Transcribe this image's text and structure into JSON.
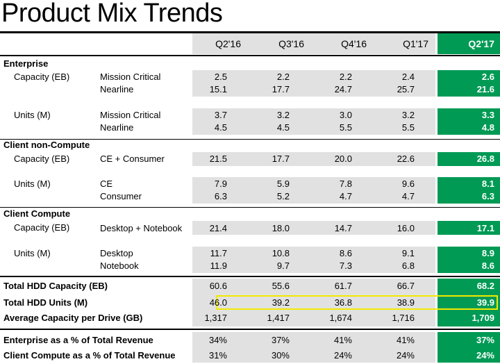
{
  "title": "Product Mix Trends",
  "colors": {
    "accent_green": "#009a55",
    "band_gray": "#e1e1e1",
    "highlight": "#f2ea00"
  },
  "columns": [
    "Q2'16",
    "Q3'16",
    "Q4'16",
    "Q1'17",
    "Q2'17"
  ],
  "sections": {
    "enterprise": "Enterprise",
    "client_non_compute": "Client non-Compute",
    "client_compute": "Client Compute"
  },
  "rows": {
    "ent_cap_label": "Capacity (EB)",
    "ent_units_label": "Units (M)",
    "cnc_cap_label": "Capacity (EB)",
    "cnc_units_label": "Units (M)",
    "cc_cap_label": "Capacity (EB)",
    "cc_units_label": "Units (M)"
  },
  "data": [
    {
      "sub": "Mission Critical",
      "v": [
        "2.5",
        "2.2",
        "2.2",
        "2.4",
        "2.6"
      ]
    },
    {
      "sub": "Nearline",
      "v": [
        "15.1",
        "17.7",
        "24.7",
        "25.7",
        "21.6"
      ]
    },
    {
      "sub": "Mission Critical",
      "v": [
        "3.7",
        "3.2",
        "3.0",
        "3.2",
        "3.3"
      ]
    },
    {
      "sub": "Nearline",
      "v": [
        "4.5",
        "4.5",
        "5.5",
        "5.5",
        "4.8"
      ]
    },
    {
      "sub": "CE + Consumer",
      "v": [
        "21.5",
        "17.7",
        "20.0",
        "22.6",
        "26.8"
      ]
    },
    {
      "sub": "CE",
      "v": [
        "7.9",
        "5.9",
        "7.8",
        "9.6",
        "8.1"
      ]
    },
    {
      "sub": "Consumer",
      "v": [
        "6.3",
        "5.2",
        "4.7",
        "4.7",
        "6.3"
      ]
    },
    {
      "sub": "Desktop + Notebook",
      "v": [
        "21.4",
        "18.0",
        "14.7",
        "16.0",
        "17.1"
      ]
    },
    {
      "sub": "Desktop",
      "v": [
        "11.7",
        "10.8",
        "8.6",
        "9.1",
        "8.9"
      ]
    },
    {
      "sub": "Notebook",
      "v": [
        "11.9",
        "9.7",
        "7.3",
        "6.8",
        "8.6"
      ]
    }
  ],
  "totals": [
    {
      "label": "Total  HDD Capacity (EB)",
      "v": [
        "60.6",
        "55.6",
        "61.7",
        "66.7",
        "68.2"
      ]
    },
    {
      "label": "Total HDD Units (M)",
      "v": [
        "46.0",
        "39.2",
        "36.8",
        "38.9",
        "39.9"
      ]
    },
    {
      "label": "Average Capacity per Drive (GB)",
      "v": [
        "1,317",
        "1,417",
        "1,674",
        "1,716",
        "1,709"
      ]
    }
  ],
  "revenue": [
    {
      "label": "Enterprise as a % of Total Revenue",
      "v": [
        "34%",
        "37%",
        "41%",
        "41%",
        "37%"
      ]
    },
    {
      "label": "Client Compute as a % of Total Revenue",
      "v": [
        "31%",
        "30%",
        "24%",
        "24%",
        "24%"
      ]
    }
  ]
}
